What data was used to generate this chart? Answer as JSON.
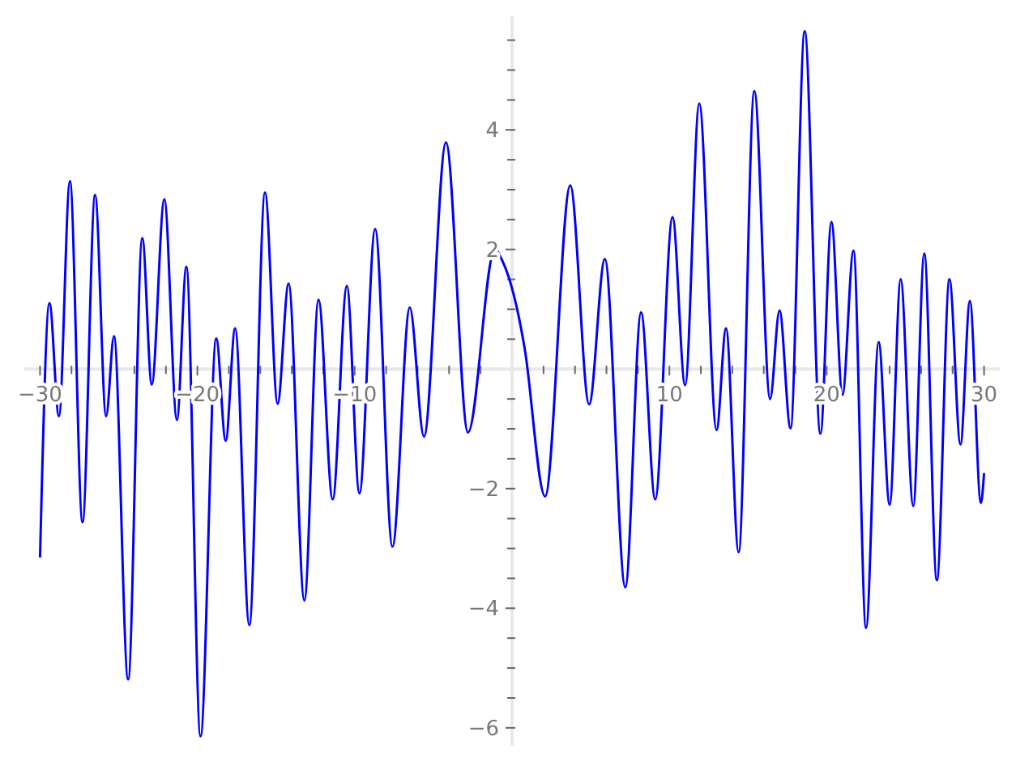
{
  "chart_data": {
    "type": "line",
    "xlim": [
      -31,
      31
    ],
    "ylim": [
      -6.3,
      5.9
    ],
    "xticks": [
      -30,
      {
        "value": -28,
        "label": null
      },
      {
        "value": -26,
        "label": null
      },
      {
        "value": -24,
        "label": null
      },
      {
        "value": -22,
        "label": null
      },
      -20,
      {
        "value": -18,
        "label": null
      },
      {
        "value": -16,
        "label": null
      },
      {
        "value": -14,
        "label": null
      },
      {
        "value": -12,
        "label": null
      },
      -10,
      {
        "value": -8,
        "label": null
      },
      {
        "value": -6,
        "label": null
      },
      {
        "value": -4,
        "label": null
      },
      {
        "value": -2,
        "label": null
      },
      {
        "value": 2,
        "label": null
      },
      {
        "value": 4,
        "label": null
      },
      {
        "value": 6,
        "label": null
      },
      {
        "value": 8,
        "label": null
      },
      10,
      {
        "value": 12,
        "label": null
      },
      {
        "value": 14,
        "label": null
      },
      {
        "value": 16,
        "label": null
      },
      {
        "value": 18,
        "label": null
      },
      20,
      {
        "value": 22,
        "label": null
      },
      {
        "value": 24,
        "label": null
      },
      {
        "value": 26,
        "label": null
      },
      {
        "value": 28,
        "label": null
      },
      30
    ],
    "yticks": [
      -6,
      {
        "value": -5.5,
        "label": null
      },
      {
        "value": -5,
        "label": null
      },
      {
        "value": -4.5,
        "label": null
      },
      -4,
      {
        "value": -3.5,
        "label": null
      },
      {
        "value": -3,
        "label": null
      },
      {
        "value": -2.5,
        "label": null
      },
      -2,
      {
        "value": -1.5,
        "label": null
      },
      {
        "value": -1,
        "label": null
      },
      {
        "value": -0.5,
        "label": null
      },
      {
        "value": 0.5,
        "label": null
      },
      {
        "value": 1,
        "label": null
      },
      {
        "value": 1.5,
        "label": null
      },
      2,
      {
        "value": 2.5,
        "label": null
      },
      {
        "value": 3,
        "label": null
      },
      {
        "value": 3.5,
        "label": null
      },
      4,
      {
        "value": 4.5,
        "label": null
      },
      {
        "value": 5,
        "label": null
      },
      {
        "value": 5.5,
        "label": null
      }
    ],
    "grid": false,
    "line_style": "solid",
    "marker": "none",
    "series": [
      {
        "color": "#0000ff",
        "x": [
          -30,
          -29.4,
          -28.8,
          -28.1,
          -27.3,
          -26.5,
          -25.8,
          -25.3,
          -24.4,
          -23.5,
          -22.9,
          -22.1,
          -21.3,
          -20.7,
          -19.8,
          -18.8,
          -18.2,
          -17.6,
          -16.7,
          -15.7,
          -14.9,
          -14.2,
          -13.2,
          -12.3,
          -11.4,
          -10.5,
          -9.7,
          -8.7,
          -7.6,
          -6.5,
          -5.6,
          -4.2,
          -2.8,
          -1.1,
          -0.6,
          0.1,
          0.4,
          0.8,
          2.1,
          3.7,
          4.9,
          5.9,
          7.2,
          8.2,
          9.1,
          10.2,
          11.0,
          11.9,
          13.0,
          13.6,
          14.4,
          15.4,
          16.4,
          17.0,
          17.7,
          18.6,
          19.6,
          20.3,
          21.0,
          21.7,
          22.5,
          23.3,
          24.0,
          24.7,
          25.5,
          26.2,
          27.0,
          27.8,
          28.5,
          29.1,
          29.8,
          30
        ],
        "values": [
          -3.15,
          1.1,
          -0.79,
          3.14,
          -2.56,
          2.91,
          -0.79,
          0.55,
          -5.19,
          2.19,
          -0.26,
          2.84,
          -0.85,
          1.71,
          -6.14,
          0.51,
          -1.2,
          0.68,
          -4.28,
          2.95,
          -0.58,
          1.43,
          -3.87,
          1.16,
          -2.18,
          1.39,
          -2.08,
          2.34,
          -2.97,
          1.03,
          -1.13,
          3.79,
          -1.06,
          2.0,
          1.8,
          1.25,
          0.91,
          0.35,
          -2.13,
          3.07,
          -0.59,
          1.84,
          -3.65,
          0.95,
          -2.18,
          2.54,
          -0.27,
          4.44,
          -1.02,
          0.68,
          -3.06,
          4.65,
          -0.5,
          0.98,
          -0.99,
          5.65,
          -1.08,
          2.46,
          -0.43,
          1.98,
          -4.33,
          0.45,
          -2.27,
          1.5,
          -2.29,
          1.93,
          -3.53,
          1.5,
          -1.26,
          1.14,
          -2.24,
          -1.74
        ]
      }
    ]
  }
}
